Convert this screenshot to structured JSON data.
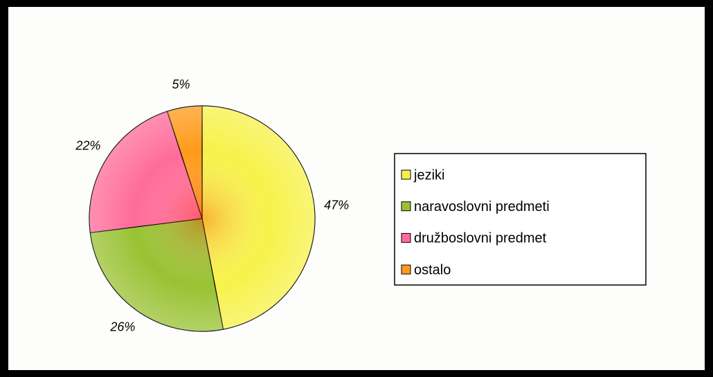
{
  "chart_data": {
    "type": "pie",
    "categories": [
      "jeziki",
      "naravoslovni predmeti",
      "družboslovni predmet",
      "ostalo"
    ],
    "values": [
      47,
      26,
      22,
      5
    ],
    "value_labels": [
      "47%",
      "26%",
      "22%",
      "5%"
    ],
    "colors": [
      "#f7f24a",
      "#99c233",
      "#ff6b9a",
      "#ff9a1a"
    ],
    "legend": "right"
  }
}
